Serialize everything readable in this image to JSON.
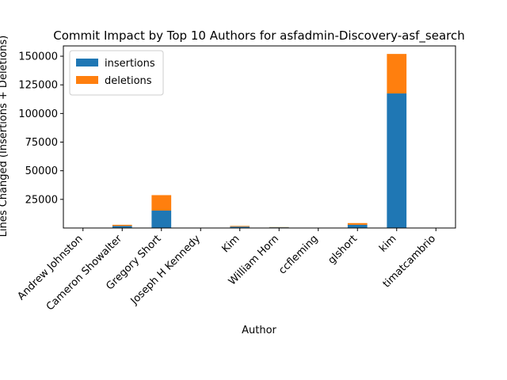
{
  "chart_data": {
    "type": "bar",
    "stacked": true,
    "title": "Commit Impact by Top 10 Authors for asfadmin-Discovery-asf_search",
    "xlabel": "Author",
    "ylabel": "Lines Changed (Insertions + Deletions)",
    "categories": [
      "Andrew Johnston",
      "Cameron Showalter",
      "Gregory Short",
      "Joseph H Kennedy",
      "Kim",
      "William Horn",
      "ccfleming",
      "glshort",
      "kim",
      "timatcambrio"
    ],
    "series": [
      {
        "name": "insertions",
        "color": "#1f77b4",
        "values": [
          60,
          1800,
          15200,
          30,
          1200,
          600,
          20,
          2800,
          117500,
          40
        ]
      },
      {
        "name": "deletions",
        "color": "#ff7f0e",
        "values": [
          20,
          1000,
          13500,
          10,
          600,
          200,
          10,
          1500,
          34500,
          10
        ]
      }
    ],
    "ylim": [
      0,
      159000
    ],
    "yticks": [
      25000,
      50000,
      75000,
      100000,
      125000,
      150000
    ],
    "ytick_labels": [
      "25000",
      "50000",
      "75000",
      "100000",
      "125000",
      "150000"
    ],
    "legend": "top-left",
    "grid": false
  }
}
